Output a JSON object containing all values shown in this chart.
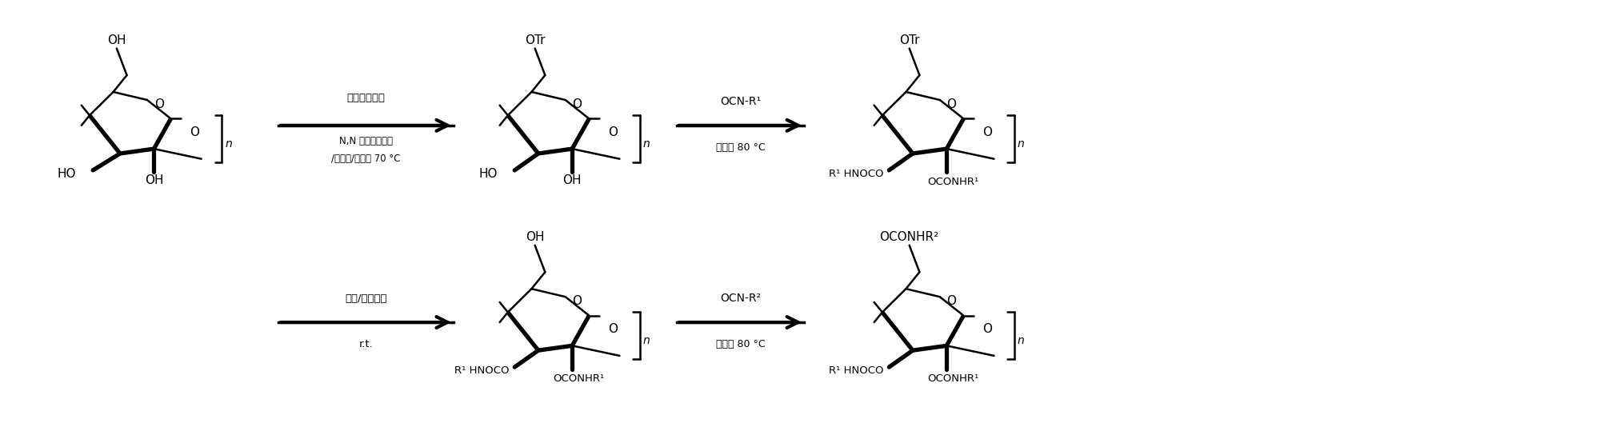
{
  "background_color": "#ffffff",
  "fig_width": 20.05,
  "fig_height": 5.49,
  "dpi": 100,
  "arrow1_above": "三苯基氯甲烷",
  "arrow1_below1": "N,N 二甲基乙酰胺",
  "arrow1_below2": "/氯化锇/吹咀， 70 °C",
  "arrow2_above": "OCN-R¹",
  "arrow2_below": "吹咀， 80 °C",
  "arrow3_above": "盐酸/四氢吵喼",
  "arrow3_below": "r.t.",
  "arrow4_above": "OCN-R²",
  "arrow4_below": "吹咀， 80 °C",
  "text_color": "#000000",
  "line_color": "#000000"
}
